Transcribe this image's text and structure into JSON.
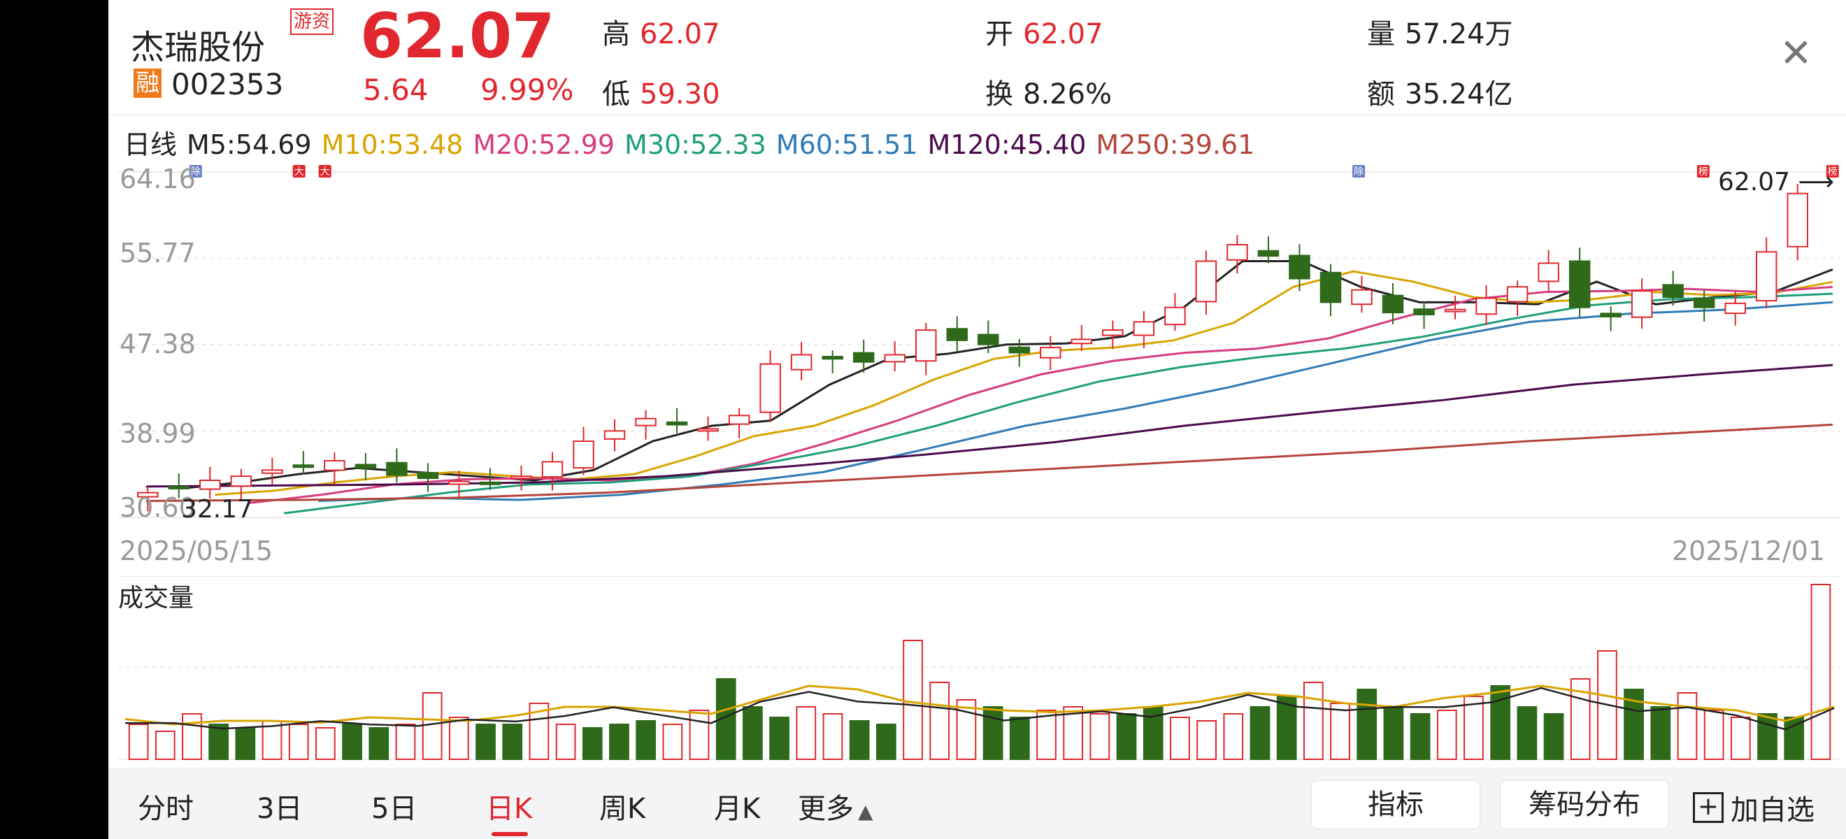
{
  "header": {
    "stock_name": "杰瑞股份",
    "tag": "游资",
    "rong": "融",
    "code": "002353",
    "price": "62.07",
    "change": "5.64",
    "change_pct": "9.99%",
    "high_label": "高",
    "high": "62.07",
    "low_label": "低",
    "low": "59.30",
    "open_label": "开",
    "open": "62.07",
    "turnover_label": "换",
    "turnover": "8.26%",
    "volume_label": "量",
    "volume": "57.24万",
    "amount_label": "额",
    "amount": "35.24亿",
    "close_icon": "close-icon"
  },
  "ma_bar": {
    "period": "日线",
    "items": [
      {
        "text": "M5:54.69",
        "color": "#222222"
      },
      {
        "text": "M10:53.48",
        "color": "#d9a400"
      },
      {
        "text": "M20:52.99",
        "color": "#d63c7e"
      },
      {
        "text": "M30:52.33",
        "color": "#1e9e7a"
      },
      {
        "text": "M60:51.51",
        "color": "#2f7bb8"
      },
      {
        "text": "M120:45.40",
        "color": "#4b0a4b"
      },
      {
        "text": "M250:39.61",
        "color": "#b3453a"
      }
    ]
  },
  "price_axis": {
    "ticks": [
      "64.16",
      "55.77",
      "47.38",
      "38.99",
      "30.60"
    ]
  },
  "chart_labels": {
    "low_marker": "32.17",
    "high_marker": "62.07 ⟶",
    "date_start": "2025/05/15",
    "date_end": "2025/12/01",
    "volume_title": "成交量",
    "event_markers": [
      "除",
      "大",
      "大",
      "除",
      "榜",
      "榜"
    ]
  },
  "chart_data": {
    "type": "candlestick",
    "x_range": [
      "2025/05/15",
      "2025/12/01"
    ],
    "ylim": [
      30.6,
      64.16
    ],
    "y_ticks": [
      64.16,
      55.77,
      47.38,
      38.99,
      30.6
    ],
    "last_close": 62.07,
    "period_low": 32.17,
    "close_trend": [
      33.0,
      33.5,
      34.2,
      34.6,
      35.2,
      35.6,
      36.1,
      35.4,
      34.7,
      34.4,
      34.1,
      33.9,
      34.6,
      36.0,
      38.0,
      39.0,
      40.2,
      39.6,
      39.2,
      40.5,
      45.5,
      46.4,
      46.0,
      45.7,
      46.4,
      48.8,
      47.8,
      47.4,
      46.6,
      47.1,
      47.9,
      48.8,
      49.6,
      51.0,
      55.5,
      57.1,
      56.0,
      53.8,
      51.5,
      52.7,
      50.5,
      50.3,
      50.8,
      51.9,
      53.0,
      55.3,
      51.0,
      50.1,
      52.6,
      52.0,
      51.0,
      51.4,
      56.4,
      62.07
    ],
    "ma_lines": {
      "M5": [
        33.4,
        34.0,
        34.8,
        35.4,
        35.0,
        34.6,
        34.2,
        35.2,
        38.0,
        39.5,
        40.0,
        43.5,
        46.0,
        46.5,
        47.4,
        47.5,
        48.2,
        51.0,
        55.5,
        55.5,
        53.0,
        51.5,
        51.5,
        51.3,
        53.5,
        51.3,
        52.0,
        52.5,
        54.69
      ],
      "M10": [
        32.8,
        33.2,
        34.0,
        34.6,
        35.0,
        34.6,
        34.3,
        34.8,
        36.5,
        38.5,
        39.5,
        41.5,
        44.0,
        46.0,
        46.8,
        47.1,
        47.8,
        49.5,
        53.0,
        54.5,
        53.5,
        52.0,
        51.5,
        51.8,
        52.5,
        52.2,
        52.4,
        53.48
      ],
      "M20": [
        32.0,
        32.8,
        33.8,
        34.3,
        34.4,
        34.2,
        34.5,
        35.8,
        37.8,
        40.0,
        42.5,
        44.5,
        45.8,
        46.6,
        47.0,
        48.0,
        50.0,
        51.8,
        52.5,
        52.6,
        52.8,
        52.5,
        52.99
      ],
      "M30": [
        31.0,
        32.0,
        33.0,
        33.8,
        34.0,
        34.6,
        36.0,
        37.5,
        39.5,
        41.8,
        43.8,
        45.2,
        46.2,
        47.0,
        48.2,
        49.8,
        51.2,
        51.8,
        52.0,
        52.33
      ],
      "M60": [
        32.2,
        32.5,
        32.3,
        32.8,
        33.8,
        35.0,
        37.2,
        39.5,
        41.2,
        43.2,
        45.5,
        47.8,
        49.6,
        50.4,
        50.8,
        51.51
      ],
      "M120": [
        33.6,
        33.7,
        33.8,
        34.0,
        34.6,
        35.6,
        36.7,
        37.9,
        39.5,
        40.8,
        42.0,
        43.5,
        44.5,
        45.4
      ],
      "M250": [
        32.2,
        32.3,
        32.5,
        33.0,
        33.8,
        34.6,
        35.4,
        36.2,
        37.0,
        38.0,
        38.8,
        39.61
      ]
    },
    "volume": {
      "title": "成交量",
      "relative_heights": [
        0.2,
        0.16,
        0.26,
        0.2,
        0.18,
        0.22,
        0.2,
        0.18,
        0.2,
        0.18,
        0.2,
        0.38,
        0.24,
        0.2,
        0.2,
        0.32,
        0.2,
        0.18,
        0.2,
        0.22,
        0.2,
        0.28,
        0.46,
        0.3,
        0.24,
        0.3,
        0.26,
        0.22,
        0.2,
        0.68,
        0.44,
        0.34,
        0.3,
        0.24,
        0.28,
        0.3,
        0.26,
        0.26,
        0.3,
        0.24,
        0.22,
        0.26,
        0.3,
        0.36,
        0.44,
        0.32,
        0.4,
        0.3,
        0.26,
        0.28,
        0.36,
        0.42,
        0.3,
        0.26,
        0.46,
        0.62,
        0.4,
        0.3,
        0.38,
        0.28,
        0.24,
        0.26,
        0.24,
        1.0
      ],
      "ma_trend": [
        0.23,
        0.2,
        0.22,
        0.22,
        0.21,
        0.24,
        0.23,
        0.22,
        0.25,
        0.3,
        0.3,
        0.28,
        0.26,
        0.34,
        0.42,
        0.4,
        0.33,
        0.3,
        0.28,
        0.27,
        0.28,
        0.3,
        0.33,
        0.38,
        0.36,
        0.32,
        0.3,
        0.35,
        0.38,
        0.42,
        0.38,
        0.33,
        0.3,
        0.28,
        0.22,
        0.3
      ]
    }
  },
  "tabs": [
    {
      "label": "分时"
    },
    {
      "label": "3日"
    },
    {
      "label": "5日"
    },
    {
      "label": "日K"
    },
    {
      "label": "周K"
    },
    {
      "label": "月K"
    },
    {
      "label": "更多"
    }
  ],
  "active_tab": "日K",
  "buttons": {
    "indicator": "指标",
    "chips": "筹码分布",
    "add_watch_icon": "+",
    "add_watch": "加自选"
  },
  "colors": {
    "up": "#e0272d",
    "down": "#2e6a1a",
    "accent": "#e0272d"
  }
}
